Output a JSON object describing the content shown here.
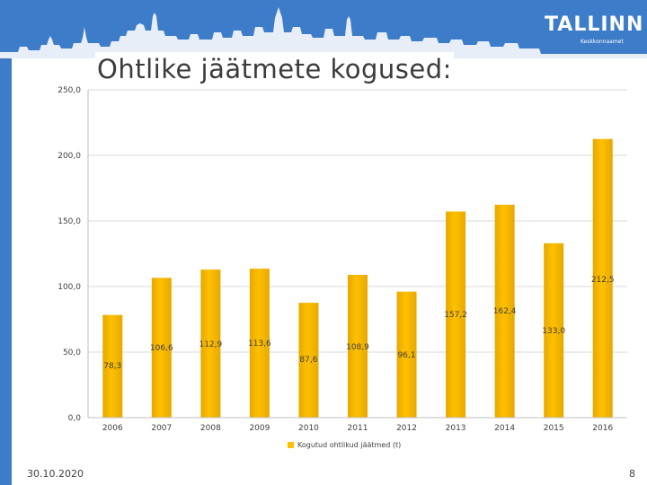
{
  "slide": {
    "title": "Ohtlike jäätmete kogused:",
    "date": "30.10.2020",
    "page_number": "8"
  },
  "logo": {
    "text": "TALLINN",
    "subtitle": "Keskkonnaamet"
  },
  "colors": {
    "header": "#3d7cc9",
    "bar": "#ffc000",
    "bar_dark": "#e6a800",
    "grid": "#d9d9d9"
  },
  "chart_data": {
    "type": "bar",
    "categories": [
      "2006",
      "2007",
      "2008",
      "2009",
      "2010",
      "2011",
      "2012",
      "2013",
      "2014",
      "2015",
      "2016"
    ],
    "series": [
      {
        "name": "Kogutud ohtlikud jäätmed (t)",
        "values": [
          78.3,
          106.6,
          112.9,
          113.6,
          87.6,
          108.9,
          96.1,
          157.2,
          162.4,
          133.0,
          212.5
        ],
        "labels": [
          "78,3",
          "106,6",
          "112,9",
          "113,6",
          "87,6",
          "108,9",
          "96,1",
          "157,2",
          "162,4",
          "133,0",
          "212,5"
        ]
      }
    ],
    "yticks": [
      "0,0",
      "50,0",
      "100,0",
      "150,0",
      "200,0",
      "250,0"
    ],
    "ylim": [
      0,
      250
    ],
    "grid": true,
    "legend_position": "bottom"
  }
}
